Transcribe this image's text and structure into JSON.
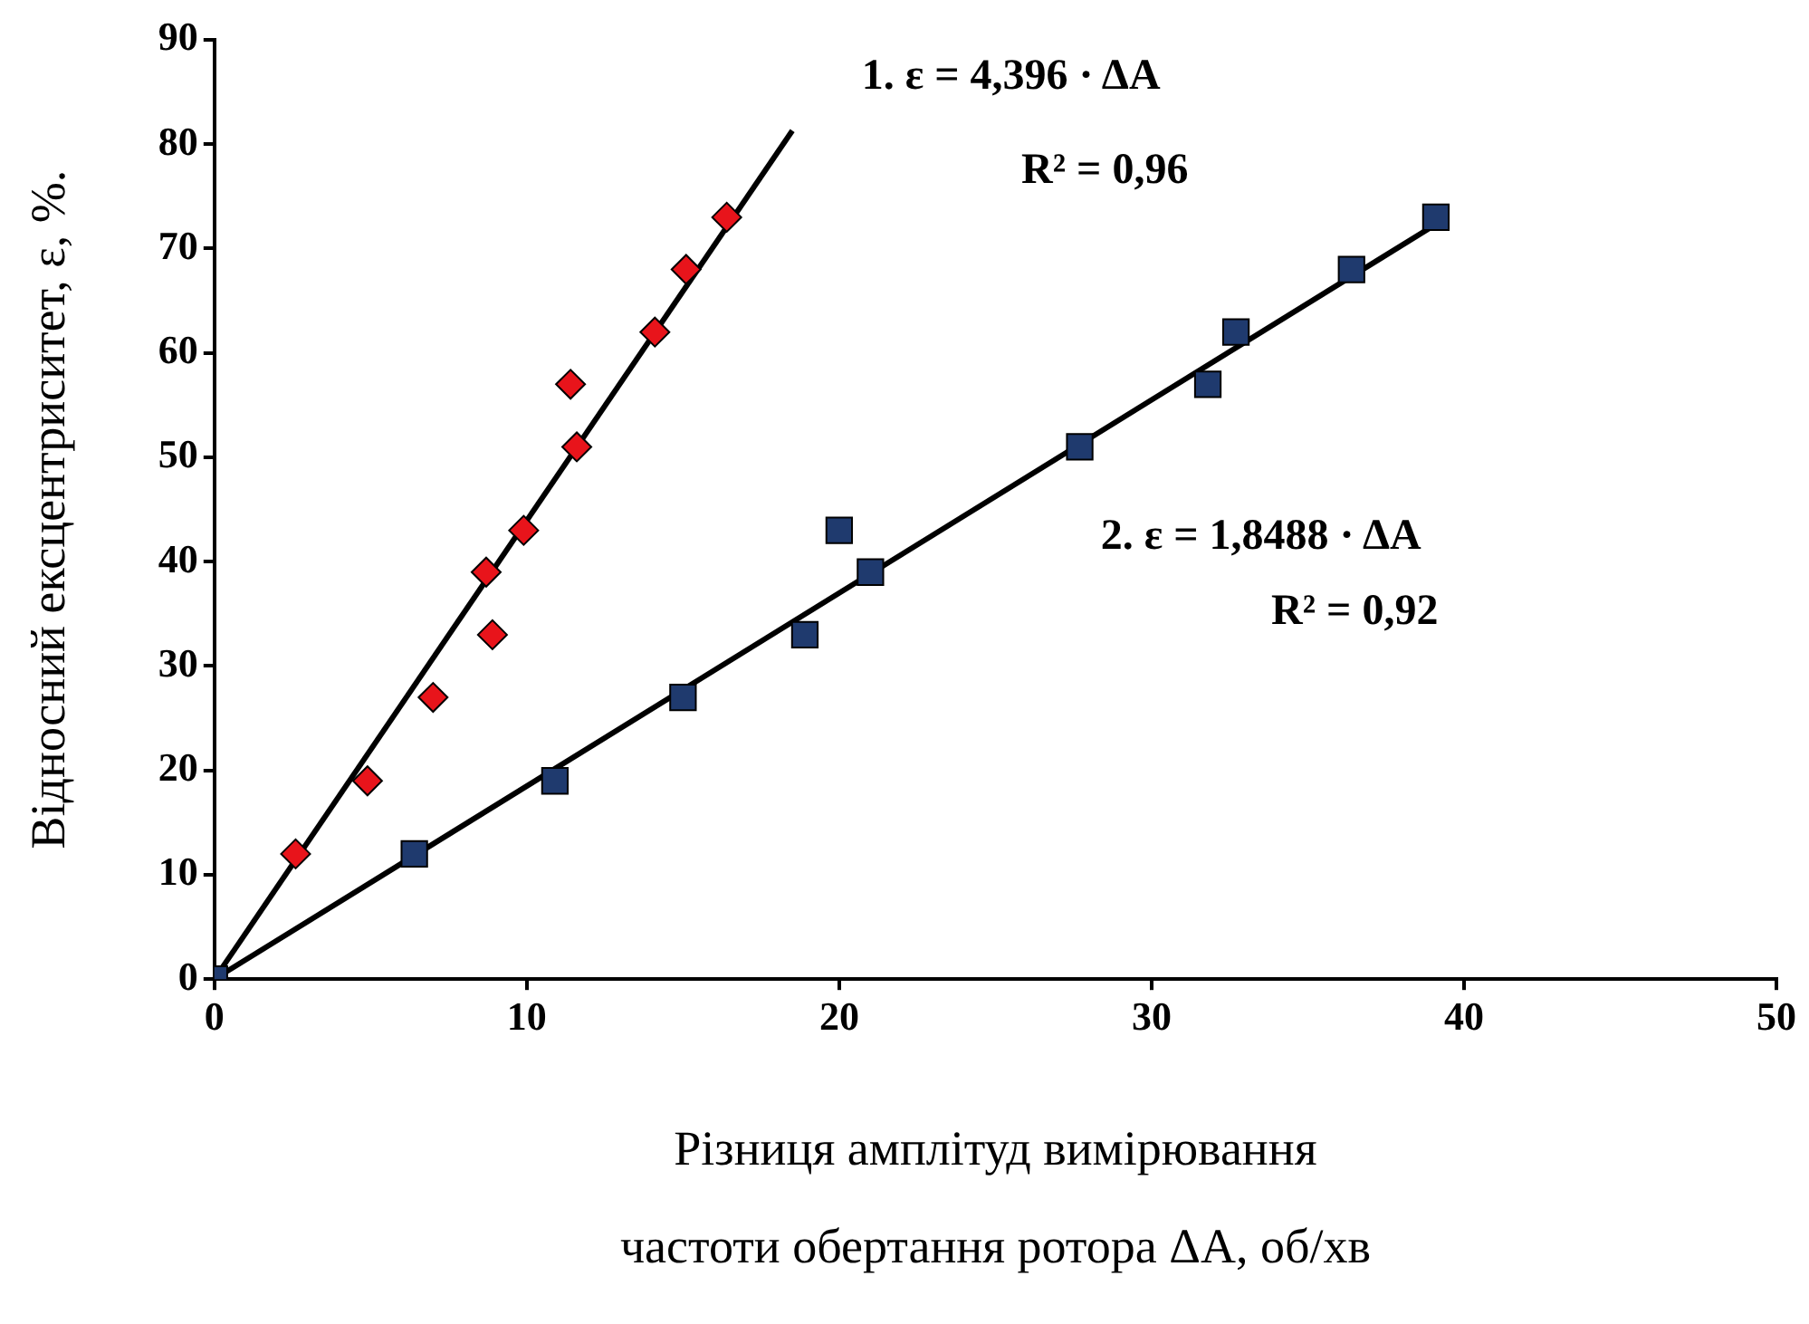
{
  "chart_data": {
    "type": "scatter",
    "ylabel": "Відносний ексцентриситет, ε, %.",
    "xlabel": "Різниця амплітуд вимірювання\nчастоти обертання ротора ΔA, об/хв",
    "xlim": [
      0,
      50
    ],
    "xticks": [
      0,
      10,
      20,
      30,
      40,
      50
    ],
    "ylim": [
      0,
      90
    ],
    "yticks": [
      0,
      10,
      20,
      30,
      40,
      50,
      60,
      70,
      80,
      90
    ],
    "grid": false,
    "legend": false,
    "series": [
      {
        "type": "line",
        "color": "#000000",
        "marker": "none",
        "x": [
          0,
          18.5
        ],
        "values": [
          0,
          81.3
        ]
      },
      {
        "type": "line",
        "color": "#000000",
        "marker": "none",
        "x": [
          0,
          39.3
        ],
        "values": [
          0,
          72.7
        ]
      },
      {
        "color": "#e8141b",
        "marker": "diamond",
        "x": [
          2.6,
          4.9,
          7.0,
          8.7,
          8.9,
          9.9,
          11.4,
          11.6,
          14.1,
          15.1,
          16.4
        ],
        "values": [
          12,
          19,
          27,
          39,
          33,
          43,
          57,
          51,
          62,
          68,
          73
        ]
      },
      {
        "color": "#1f3a6e",
        "marker": "square",
        "x": [
          0,
          6.4,
          10.9,
          15.0,
          18.9,
          20.0,
          21.0,
          27.7,
          31.8,
          32.7,
          36.4,
          39.1
        ],
        "values": [
          0,
          12,
          19,
          27,
          33,
          43,
          39,
          51,
          57,
          62,
          68,
          73
        ]
      }
    ],
    "annotations": [
      "1. ε = 4,396 · ΔA",
      "R² = 0,96",
      "2. ε = 1,8488 · ΔA",
      "R² = 0,92"
    ]
  }
}
